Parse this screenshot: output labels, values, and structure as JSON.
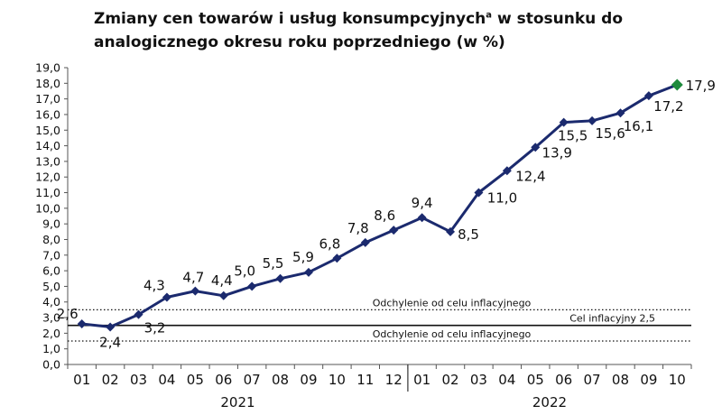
{
  "title": {
    "main": "Zmiany cen towarów i usług konsumpcyjnych",
    "superscript": "a",
    "rest": " w stosunku do analogicznego okresu roku poprzedniego (w %)"
  },
  "chart_data": {
    "type": "line",
    "title": "Zmiany cen towarów i usług konsumpcyjnych a w stosunku do analogicznego okresu roku poprzedniego (w %)",
    "categories": [
      "01",
      "02",
      "03",
      "04",
      "05",
      "06",
      "07",
      "08",
      "09",
      "10",
      "11",
      "12",
      "01",
      "02",
      "03",
      "04",
      "05",
      "06",
      "07",
      "08",
      "09",
      "10"
    ],
    "years": [
      {
        "label": "2021",
        "start": 0,
        "end": 11
      },
      {
        "label": "2022",
        "start": 12,
        "end": 21
      }
    ],
    "series": [
      {
        "values": [
          2.6,
          2.4,
          3.2,
          4.3,
          4.7,
          4.4,
          5.0,
          5.5,
          5.9,
          6.8,
          7.8,
          8.6,
          9.4,
          8.5,
          11.0,
          12.4,
          13.9,
          15.5,
          15.6,
          16.1,
          17.2,
          17.9
        ],
        "labels": [
          "2,6",
          "2,4",
          "3,2",
          "4,3",
          "4,7",
          "4,4",
          "5,0",
          "5,5",
          "5,9",
          "6,8",
          "7,8",
          "8,6",
          "9,4",
          "8,5",
          "11,0",
          "12,4",
          "13,9",
          "15,5",
          "15,6",
          "16,1",
          "17,2",
          "17,9"
        ],
        "color": "#1b2a6e",
        "last_point_color": "#1e8a3c"
      }
    ],
    "reference_lines": [
      {
        "value": 3.5,
        "style": "dotted",
        "label": "Odchylenie od celu inflacyjnego"
      },
      {
        "value": 2.5,
        "style": "solid",
        "label": "Cel inflacyjny 2,5"
      },
      {
        "value": 1.5,
        "style": "dotted",
        "label": "Odchylenie od celu inflacyjnego"
      }
    ],
    "ylim": [
      0,
      19
    ],
    "ytick_step": 1,
    "ytick_labels": [
      "0,0",
      "1,0",
      "2,0",
      "3,0",
      "4,0",
      "5,0",
      "6,0",
      "7,0",
      "8,0",
      "9,0",
      "10,0",
      "11,0",
      "12,0",
      "13,0",
      "14,0",
      "15,0",
      "16,0",
      "17,0",
      "18,0",
      "19,0"
    ],
    "grid": false,
    "legend": "none"
  }
}
